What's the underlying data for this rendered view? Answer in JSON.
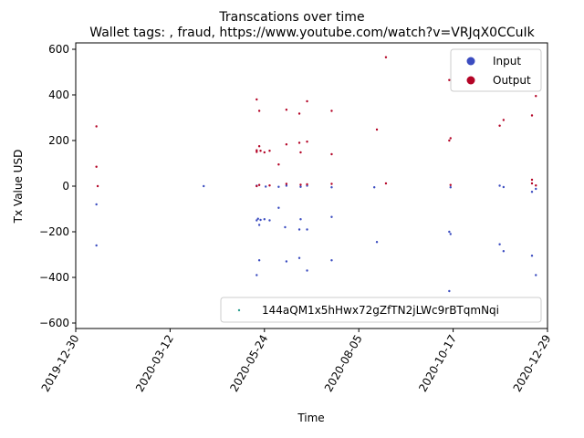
{
  "chart_data": {
    "type": "scatter",
    "title": "Transcations over time",
    "subtitle": "Wallet tags: , fraud, https://www.youtube.com/watch?v=VRJqX0CCuIk",
    "xlabel": "Time",
    "ylabel": "Tx Value USD",
    "xlim": [
      "2019-12-30",
      "2020-12-29"
    ],
    "ylim": [
      -620,
      620
    ],
    "x_ticks": [
      "2019-12-30",
      "2020-03-12",
      "2020-05-24",
      "2020-08-05",
      "2020-10-17",
      "2020-12-29"
    ],
    "y_ticks": [
      -600,
      -400,
      -200,
      0,
      200,
      400,
      600
    ],
    "grid": false,
    "legend_series": {
      "position": "top-right",
      "entries": [
        {
          "name": "Input",
          "color": "#3b4cc0"
        },
        {
          "name": "Output",
          "color": "#b40426"
        }
      ]
    },
    "legend_wallet": {
      "position": "lower-right",
      "label": "144aQM1x5hHwx72gZfTN2jLWc9rBTqmNqi",
      "color": "#2a9d8f"
    },
    "series": [
      {
        "name": "Input",
        "color": "#3b4cc0",
        "points": [
          [
            "2020-01-15",
            -80
          ],
          [
            "2020-01-15",
            -260
          ],
          [
            "2020-04-07",
            0
          ],
          [
            "2020-05-18",
            -150
          ],
          [
            "2020-05-18",
            -390
          ],
          [
            "2020-05-18",
            2
          ],
          [
            "2020-05-19",
            -143
          ],
          [
            "2020-05-20",
            -170
          ],
          [
            "2020-05-20",
            -325
          ],
          [
            "2020-05-21",
            -148
          ],
          [
            "2020-05-24",
            -145
          ],
          [
            "2020-05-25",
            -2
          ],
          [
            "2020-05-28",
            -150
          ],
          [
            "2020-06-04",
            -95
          ],
          [
            "2020-06-04",
            -3
          ],
          [
            "2020-06-09",
            -180
          ],
          [
            "2020-06-10",
            -330
          ],
          [
            "2020-06-10",
            2
          ],
          [
            "2020-06-20",
            -315
          ],
          [
            "2020-06-20",
            -190
          ],
          [
            "2020-06-21",
            -145
          ],
          [
            "2020-06-21",
            -3
          ],
          [
            "2020-06-26",
            -370
          ],
          [
            "2020-06-26",
            -190
          ],
          [
            "2020-06-26",
            2
          ],
          [
            "2020-07-15",
            -325
          ],
          [
            "2020-07-15",
            -135
          ],
          [
            "2020-07-15",
            -5
          ],
          [
            "2020-08-17",
            -5
          ],
          [
            "2020-08-19",
            -245
          ],
          [
            "2020-10-14",
            -460
          ],
          [
            "2020-10-14",
            -200
          ],
          [
            "2020-10-15",
            -210
          ],
          [
            "2020-10-15",
            -5
          ],
          [
            "2020-11-22",
            -255
          ],
          [
            "2020-11-22",
            2
          ],
          [
            "2020-11-25",
            -285
          ],
          [
            "2020-11-25",
            -4
          ],
          [
            "2020-12-17",
            -305
          ],
          [
            "2020-12-17",
            -25
          ],
          [
            "2020-12-20",
            -390
          ],
          [
            "2020-12-20",
            -12
          ]
        ]
      },
      {
        "name": "Output",
        "color": "#b40426",
        "points": [
          [
            "2020-01-15",
            262
          ],
          [
            "2020-01-15",
            85
          ],
          [
            "2020-01-16",
            0
          ],
          [
            "2020-05-18",
            380
          ],
          [
            "2020-05-18",
            157
          ],
          [
            "2020-05-18",
            150
          ],
          [
            "2020-05-18",
            0
          ],
          [
            "2020-05-20",
            330
          ],
          [
            "2020-05-20",
            175
          ],
          [
            "2020-05-20",
            5
          ],
          [
            "2020-05-21",
            155
          ],
          [
            "2020-05-24",
            148
          ],
          [
            "2020-05-28",
            155
          ],
          [
            "2020-05-28",
            3
          ],
          [
            "2020-06-04",
            95
          ],
          [
            "2020-06-10",
            335
          ],
          [
            "2020-06-10",
            183
          ],
          [
            "2020-06-10",
            10
          ],
          [
            "2020-06-20",
            318
          ],
          [
            "2020-06-20",
            190
          ],
          [
            "2020-06-21",
            148
          ],
          [
            "2020-06-21",
            6
          ],
          [
            "2020-06-26",
            372
          ],
          [
            "2020-06-26",
            195
          ],
          [
            "2020-06-26",
            8
          ],
          [
            "2020-07-15",
            330
          ],
          [
            "2020-07-15",
            140
          ],
          [
            "2020-07-15",
            10
          ],
          [
            "2020-08-19",
            248
          ],
          [
            "2020-08-26",
            565
          ],
          [
            "2020-08-26",
            12
          ],
          [
            "2020-10-14",
            465
          ],
          [
            "2020-10-14",
            200
          ],
          [
            "2020-10-15",
            210
          ],
          [
            "2020-10-15",
            5
          ],
          [
            "2020-11-22",
            265
          ],
          [
            "2020-11-25",
            290
          ],
          [
            "2020-12-17",
            310
          ],
          [
            "2020-12-17",
            28
          ],
          [
            "2020-12-17",
            12
          ],
          [
            "2020-12-20",
            395
          ],
          [
            "2020-12-20",
            3
          ]
        ]
      }
    ]
  }
}
